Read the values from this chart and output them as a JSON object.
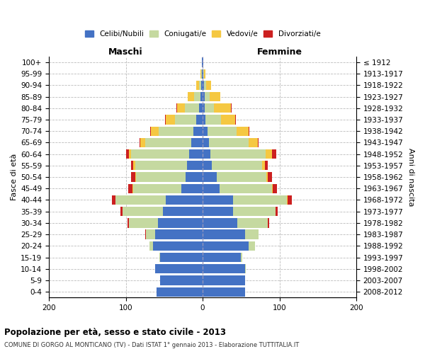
{
  "age_groups": [
    "0-4",
    "5-9",
    "10-14",
    "15-19",
    "20-24",
    "25-29",
    "30-34",
    "35-39",
    "40-44",
    "45-49",
    "50-54",
    "55-59",
    "60-64",
    "65-69",
    "70-74",
    "75-79",
    "80-84",
    "85-89",
    "90-94",
    "95-99",
    "100+"
  ],
  "birth_years": [
    "2008-2012",
    "2003-2007",
    "1998-2002",
    "1993-1997",
    "1988-1992",
    "1983-1987",
    "1978-1982",
    "1973-1977",
    "1968-1972",
    "1963-1967",
    "1958-1962",
    "1953-1957",
    "1948-1952",
    "1943-1947",
    "1938-1942",
    "1933-1937",
    "1928-1932",
    "1923-1927",
    "1918-1922",
    "1913-1917",
    "≤ 1912"
  ],
  "colors": {
    "celibe": "#4472C4",
    "coniugato": "#C5D9A0",
    "vedovo": "#F5C842",
    "divorziato": "#CC2020"
  },
  "legend_labels": [
    "Celibi/Nubili",
    "Coniugati/e",
    "Vedovi/e",
    "Divorziati/e"
  ],
  "title": "Popolazione per età, sesso e stato civile - 2013",
  "subtitle": "COMUNE DI GORGO AL MONTICANO (TV) - Dati ISTAT 1° gennaio 2013 - Elaborazione TUTTITALIA.IT",
  "xlabel_left": "Maschi",
  "xlabel_right": "Femmine",
  "ylabel_left": "Fasce di età",
  "ylabel_right": "Anni di nascita",
  "xlim": 200,
  "males": {
    "celibe": [
      60,
      55,
      62,
      55,
      65,
      62,
      58,
      52,
      48,
      28,
      22,
      20,
      18,
      15,
      12,
      8,
      5,
      3,
      2,
      1,
      1
    ],
    "coniugato": [
      0,
      0,
      0,
      1,
      4,
      12,
      38,
      52,
      65,
      62,
      65,
      68,
      75,
      60,
      45,
      28,
      18,
      8,
      3,
      1,
      0
    ],
    "vedovo": [
      0,
      0,
      0,
      0,
      0,
      0,
      0,
      0,
      0,
      1,
      1,
      2,
      3,
      6,
      10,
      12,
      10,
      8,
      3,
      1,
      0
    ],
    "divorziato": [
      0,
      0,
      0,
      0,
      0,
      1,
      2,
      3,
      5,
      6,
      5,
      3,
      4,
      1,
      1,
      1,
      1,
      0,
      0,
      0,
      0
    ]
  },
  "females": {
    "nubile": [
      55,
      55,
      55,
      50,
      60,
      55,
      45,
      40,
      40,
      22,
      18,
      12,
      10,
      8,
      6,
      4,
      3,
      3,
      2,
      1,
      1
    ],
    "coniugata": [
      0,
      0,
      1,
      2,
      8,
      18,
      40,
      55,
      70,
      68,
      65,
      65,
      72,
      52,
      38,
      20,
      12,
      6,
      3,
      1,
      0
    ],
    "vedova": [
      0,
      0,
      0,
      0,
      0,
      0,
      0,
      0,
      1,
      1,
      2,
      4,
      8,
      12,
      16,
      18,
      22,
      14,
      6,
      2,
      0
    ],
    "divorziata": [
      0,
      0,
      0,
      0,
      0,
      0,
      2,
      3,
      5,
      6,
      5,
      4,
      6,
      1,
      1,
      1,
      1,
      0,
      0,
      0,
      0
    ]
  }
}
